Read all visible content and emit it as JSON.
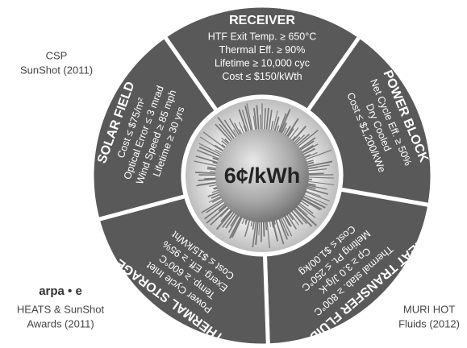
{
  "center": {
    "label": "6¢/kWh"
  },
  "sectors": [
    {
      "title": "RECEIVER",
      "lines": [
        "HTF Exit Temp. ≥ 650°C",
        "Thermal Eff. ≥ 90%",
        "Lifetime ≥ 10,000 cyc",
        "Cost ≤ $150/kWth"
      ]
    },
    {
      "title": "POWER BLOCK",
      "lines": [
        "Net Cycle Eff. ≥ 50%",
        "Dry Cooled",
        "Cost ≤ $1,200/kWe"
      ]
    },
    {
      "title": "HEAT TRANSFER FLUIDS",
      "lines": [
        "Thermal stab. ≥ 800°C",
        "Cp ≥ 3.0 J/g-K",
        "Melting Pt. ≤ 250°C",
        "Cost ≤ $1.00/kg"
      ]
    },
    {
      "title": "THERMAL STORAGE",
      "lines": [
        "Power Cycle Inlet",
        "Temp. ≥ 600°C",
        "Exerg. Eff. ≥ 95%",
        "Cost ≤ $15/kWht"
      ]
    },
    {
      "title": "SOLAR FIELD",
      "lines": [
        "Cost ≤ $75/m²",
        "Optical Error ≤ 3 mrad",
        "Wind Speed ≥ 85 mph",
        "Lifetime ≥ 30 yrs"
      ]
    }
  ],
  "side_labels": {
    "csp": [
      "CSP",
      "SunShot (2011)"
    ],
    "arpae": {
      "logo": "arpa • e",
      "lines": [
        "HEATS & SunShot",
        "Awards (2011)"
      ]
    },
    "muri": [
      "MURI HOT",
      "Fluids (2012)"
    ]
  }
}
